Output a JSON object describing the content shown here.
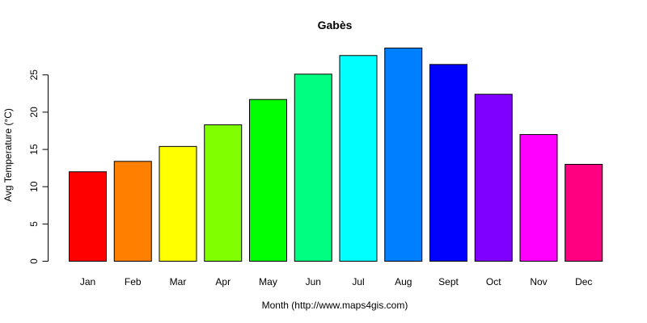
{
  "chart_data": {
    "type": "bar",
    "title": "Gabès",
    "xlabel": "Month (http://www.maps4gis.com)",
    "ylabel": "Avg Temperature (°C)",
    "categories": [
      "Jan",
      "Feb",
      "Mar",
      "Apr",
      "May",
      "Jun",
      "Jul",
      "Aug",
      "Sept",
      "Oct",
      "Nov",
      "Dec"
    ],
    "values": [
      12.0,
      13.4,
      15.4,
      18.3,
      21.7,
      25.1,
      27.6,
      28.6,
      26.4,
      22.4,
      17.0,
      13.0
    ],
    "colors": [
      "#FF0000",
      "#FF8000",
      "#FFFF00",
      "#80FF00",
      "#00FF00",
      "#00FF80",
      "#00FFFF",
      "#0080FF",
      "#0000FF",
      "#8000FF",
      "#FF00FF",
      "#FF0080"
    ],
    "yticks": [
      0,
      5,
      10,
      15,
      20,
      25
    ],
    "ylim": [
      0,
      28.6
    ],
    "grid": false,
    "legend": "none"
  }
}
